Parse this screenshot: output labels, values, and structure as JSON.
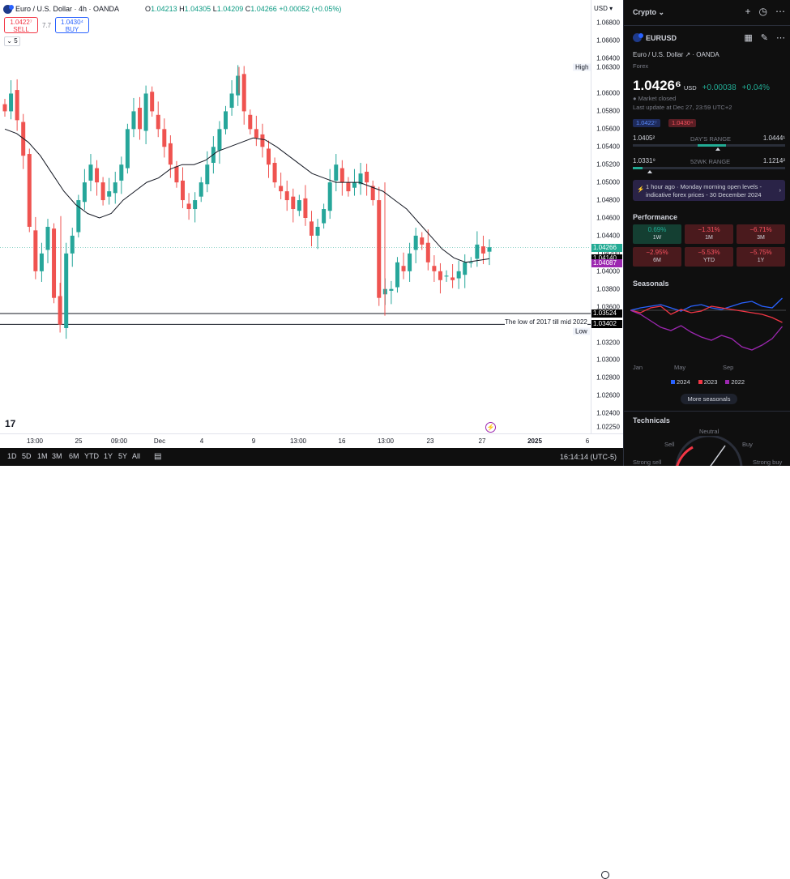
{
  "header": {
    "currency_label": "USD",
    "symbol_title": "Euro / U.S. Dollar · 4h · OANDA",
    "open_label": "O",
    "open": "1.04213",
    "high_label": "H",
    "high": "1.04305",
    "low_label": "L",
    "low": "1.04209",
    "close_label": "C",
    "close": "1.04266",
    "change": "+0.00052 (+0.05%)"
  },
  "trade": {
    "sell_price": "1.0422⁷",
    "sell_label": "SELL",
    "spread": "7.7",
    "buy_price": "1.0430⁴",
    "buy_label": "BUY"
  },
  "indicators_toggle": "5",
  "price_axis": {
    "labels": [
      "1.06800",
      "1.06600",
      "1.06400",
      "1.06300",
      "1.06000",
      "1.05800",
      "1.05600",
      "1.05400",
      "1.05200",
      "1.05000",
      "1.04800",
      "1.04600",
      "1.04400",
      "1.04200",
      "1.04000",
      "1.03800",
      "1.03600",
      "1.03400",
      "1.03200",
      "1.03000",
      "1.02800",
      "1.02600",
      "1.02400",
      "1.02250"
    ],
    "high_tag": "High",
    "high_value": "1.06300",
    "low_tag": "Low",
    "low_value": "1.03319",
    "tags": [
      {
        "value": "1.04266",
        "color": "#22ab94"
      },
      {
        "value": "1.04140",
        "color": "#000000"
      },
      {
        "value": "1.04087",
        "color": "#9c27b0"
      },
      {
        "value": "1.03524",
        "color": "#000000"
      },
      {
        "value": "1.03402",
        "color": "#000000"
      }
    ]
  },
  "annotation": "The low of 2017 till mid 2022",
  "time_axis": [
    "13:00",
    "25",
    "09:00",
    "Dec",
    "4",
    "9",
    "13:00",
    "16",
    "13:00",
    "23",
    "27",
    "2025",
    "6"
  ],
  "bottom_bar": {
    "ranges": [
      "1D",
      "5D",
      "1M",
      "3M",
      "6M",
      "YTD",
      "1Y",
      "5Y",
      "All"
    ],
    "clock": "16:14:14 (UTC-5)"
  },
  "chart_data": {
    "type": "candlestick",
    "symbol": "EURUSD",
    "interval": "4h",
    "ylim": [
      1.0222,
      1.0698
    ],
    "closes": [
      1.058,
      1.06,
      1.057,
      1.053,
      1.045,
      1.04,
      1.042,
      1.045,
      1.037,
      1.034,
      1.042,
      1.044,
      1.048,
      1.05,
      1.052,
      1.05,
      1.048,
      1.049,
      1.05,
      1.052,
      1.056,
      1.058,
      1.056,
      1.06,
      1.058,
      1.056,
      1.054,
      1.052,
      1.05,
      1.048,
      1.047,
      1.048,
      1.05,
      1.052,
      1.054,
      1.056,
      1.058,
      1.06,
      1.062,
      1.058,
      1.056,
      1.055,
      1.054,
      1.052,
      1.05,
      1.049,
      1.048,
      1.047,
      1.048,
      1.046,
      1.044,
      1.045,
      1.047,
      1.05,
      1.052,
      1.05,
      1.049,
      1.05,
      1.051,
      1.05,
      1.048,
      1.037,
      1.038,
      1.038,
      1.041,
      1.04,
      1.042,
      1.044,
      1.043,
      1.041,
      1.04,
      1.039,
      1.0395,
      1.039,
      1.04,
      1.041,
      1.041,
      1.043,
      1.042,
      1.0427
    ],
    "ma": [
      1.056,
      1.0555,
      1.0545,
      1.053,
      1.051,
      1.049,
      1.0475,
      1.0465,
      1.046,
      1.0465,
      1.048,
      1.049,
      1.05,
      1.0505,
      1.0515,
      1.052,
      1.052,
      1.0525,
      1.0535,
      1.054,
      1.0545,
      1.055,
      1.0548,
      1.054,
      1.053,
      1.052,
      1.051,
      1.0505,
      1.05,
      1.05,
      1.05,
      1.0495,
      1.049,
      1.048,
      1.047,
      1.0455,
      1.044,
      1.0425,
      1.0415,
      1.041,
      1.0412,
      1.0414
    ],
    "hlines": [
      1.03524,
      1.03402
    ]
  },
  "sidebar": {
    "watchlist_title": "Crypto",
    "symbol": "EURUSD",
    "name": "Euro / U.S. Dollar",
    "exchange": "OANDA",
    "category": "Forex",
    "price": "1.0426⁶",
    "price_ccy": "USD",
    "change": "+0.00038",
    "change_pct": "+0.04%",
    "status": "Market closed",
    "last_update": "Last update at Dec 27, 23:59 UTC+2",
    "bid_chip": "1.0422⁷",
    "ask_chip": "1.0430⁴",
    "day_low": "1.0405²",
    "day_label": "DAY'S RANGE",
    "day_high": "1.0444¹",
    "wk_low": "1.0331⁹",
    "wk_label": "52WK RANGE",
    "wk_high": "1.1214²",
    "news": "1 hour ago · Monday morning open levels - indicative forex prices - 30 December 2024",
    "performance_title": "Performance",
    "performance": [
      {
        "v": "0.69%",
        "l": "1W",
        "pos": true
      },
      {
        "v": "−1.31%",
        "l": "1M",
        "pos": false
      },
      {
        "v": "−6.71%",
        "l": "3M",
        "pos": false
      },
      {
        "v": "−2.95%",
        "l": "6M",
        "pos": false
      },
      {
        "v": "−5.53%",
        "l": "YTD",
        "pos": false
      },
      {
        "v": "−5.75%",
        "l": "1Y",
        "pos": false
      }
    ],
    "seasonals_title": "Seasonals",
    "seasonal_months": [
      "Jan",
      "May",
      "Sep"
    ],
    "seasonal_legend": [
      {
        "name": "2024",
        "color": "#2962ff"
      },
      {
        "name": "2023",
        "color": "#f23645"
      },
      {
        "name": "2022",
        "color": "#9c27b0"
      }
    ],
    "more_seasonals": "More seasonals",
    "technicals_title": "Technicals",
    "tech_labels": [
      "Neutral",
      "Sell",
      "Buy",
      "Strong sell",
      "Strong buy"
    ]
  }
}
